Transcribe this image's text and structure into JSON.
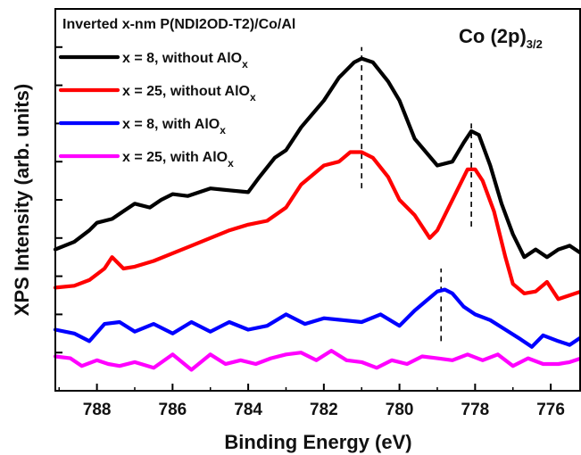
{
  "chart_data": {
    "type": "line",
    "title": "Inverted x-nm P(NDI2OD-T2)/Co/Al",
    "corner_label": {
      "main": "Co (2p)",
      "sub": "3/2"
    },
    "xlabel": "Binding Energy (eV)",
    "ylabel": "XPS Intensity (arb. units)",
    "x_reversed": true,
    "xlim": [
      789.1,
      775.2
    ],
    "ylim": [
      0,
      10
    ],
    "xticks": [
      788,
      786,
      784,
      782,
      780,
      778,
      776
    ],
    "yticks_labeled": false,
    "legend_position": "top-left",
    "series": [
      {
        "name": "x = 8, without AlO",
        "name_sub": "x",
        "color": "#000000",
        "x": [
          789.1,
          788.6,
          788.2,
          788.0,
          787.6,
          787.3,
          787.0,
          786.6,
          786.3,
          786.0,
          785.6,
          785.0,
          784.5,
          784.0,
          783.7,
          783.3,
          783.0,
          782.6,
          782.0,
          781.6,
          781.2,
          781.0,
          780.7,
          780.3,
          780.0,
          779.6,
          779.0,
          778.6,
          778.3,
          778.1,
          777.9,
          777.6,
          777.3,
          777.0,
          776.7,
          776.4,
          776.1,
          775.8,
          775.5,
          775.2
        ],
        "y": [
          3.7,
          3.9,
          4.2,
          4.4,
          4.5,
          4.7,
          4.9,
          4.8,
          5.0,
          5.15,
          5.1,
          5.3,
          5.25,
          5.2,
          5.6,
          6.1,
          6.3,
          6.9,
          7.6,
          8.2,
          8.6,
          8.7,
          8.6,
          8.1,
          7.6,
          6.6,
          5.9,
          6.0,
          6.5,
          6.8,
          6.7,
          5.9,
          4.9,
          4.1,
          3.5,
          3.7,
          3.5,
          3.7,
          3.8,
          3.6
        ]
      },
      {
        "name": "x = 25, without AlO",
        "name_sub": "x",
        "color": "#ff0000",
        "x": [
          789.1,
          788.6,
          788.2,
          787.8,
          787.6,
          787.3,
          787.0,
          786.5,
          786.0,
          785.5,
          785.0,
          784.5,
          784.0,
          783.5,
          783.0,
          782.6,
          782.0,
          781.6,
          781.3,
          781.0,
          780.7,
          780.3,
          780.0,
          779.6,
          779.2,
          779.0,
          778.7,
          778.4,
          778.2,
          778.0,
          777.8,
          777.5,
          777.2,
          777.0,
          776.7,
          776.4,
          776.1,
          775.8,
          775.5,
          775.2
        ],
        "y": [
          2.7,
          2.75,
          2.9,
          3.2,
          3.5,
          3.2,
          3.25,
          3.4,
          3.6,
          3.8,
          4.0,
          4.2,
          4.35,
          4.45,
          4.8,
          5.4,
          5.9,
          6.0,
          6.25,
          6.25,
          6.1,
          5.6,
          5.0,
          4.6,
          4.0,
          4.2,
          4.8,
          5.4,
          5.8,
          5.8,
          5.5,
          4.7,
          3.5,
          2.8,
          2.55,
          2.6,
          2.85,
          2.4,
          2.5,
          2.6
        ]
      },
      {
        "name": "x = 8, with AlO",
        "name_sub": "x",
        "color": "#0000ff",
        "x": [
          789.1,
          788.6,
          788.2,
          787.8,
          787.4,
          787.0,
          786.5,
          786.0,
          785.5,
          785.0,
          784.5,
          784.0,
          783.5,
          783.0,
          782.5,
          782.0,
          781.5,
          781.0,
          780.5,
          780.0,
          779.6,
          779.3,
          779.0,
          778.8,
          778.6,
          778.3,
          778.0,
          777.6,
          777.2,
          776.8,
          776.5,
          776.2,
          775.8,
          775.5,
          775.2
        ],
        "y": [
          1.6,
          1.5,
          1.3,
          1.75,
          1.8,
          1.55,
          1.75,
          1.5,
          1.8,
          1.55,
          1.8,
          1.6,
          1.7,
          2.0,
          1.75,
          1.9,
          1.85,
          1.8,
          2.0,
          1.7,
          2.1,
          2.35,
          2.6,
          2.65,
          2.55,
          2.2,
          2.0,
          1.85,
          1.6,
          1.35,
          1.15,
          1.45,
          1.3,
          1.2,
          1.4
        ]
      },
      {
        "name": "x = 25, with AlO",
        "name_sub": "x",
        "color": "#ff00ff",
        "x": [
          789.1,
          788.7,
          788.4,
          788.0,
          787.7,
          787.4,
          787.0,
          786.5,
          786.0,
          785.5,
          785.0,
          784.6,
          784.2,
          783.8,
          783.4,
          783.0,
          782.6,
          782.2,
          781.8,
          781.4,
          781.0,
          780.6,
          780.2,
          779.8,
          779.4,
          779.0,
          778.6,
          778.2,
          777.8,
          777.4,
          777.0,
          776.6,
          776.2,
          775.8,
          775.5,
          775.2
        ],
        "y": [
          0.9,
          0.85,
          0.65,
          0.8,
          0.7,
          0.65,
          0.75,
          0.6,
          0.95,
          0.55,
          0.95,
          0.7,
          0.8,
          0.7,
          0.85,
          0.95,
          1.0,
          0.8,
          1.05,
          0.8,
          0.75,
          0.6,
          0.8,
          0.7,
          0.9,
          0.85,
          0.8,
          0.95,
          0.8,
          0.95,
          0.65,
          0.85,
          0.7,
          0.7,
          0.75,
          0.85
        ]
      }
    ],
    "reference_lines": [
      {
        "x": 781.0,
        "y_range": [
          5.3,
          9.0
        ]
      },
      {
        "x": 778.1,
        "y_range": [
          4.3,
          7.0
        ]
      },
      {
        "x": 778.9,
        "y_range": [
          1.3,
          3.2
        ]
      }
    ]
  }
}
